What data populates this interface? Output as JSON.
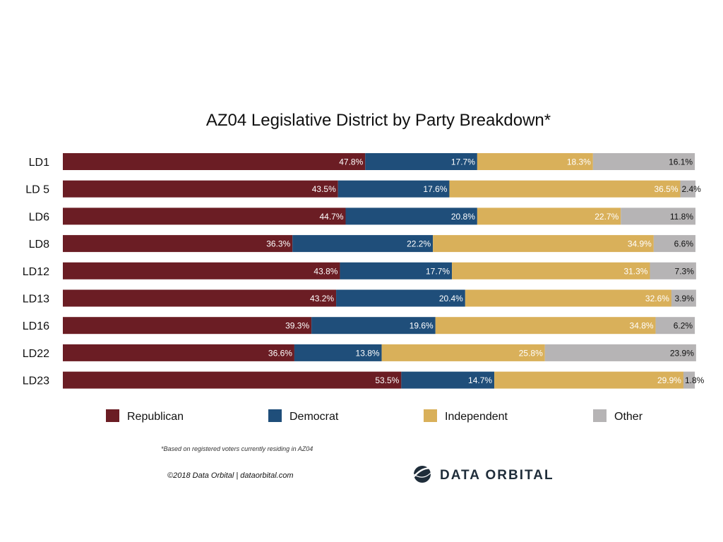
{
  "chart_data": {
    "type": "bar",
    "orientation": "horizontal",
    "stacked": true,
    "normalized": true,
    "title": "AZ04 Legislative District by Party Breakdown*",
    "categories": [
      "LD1",
      "LD 5",
      "LD6",
      "LD8",
      "LD12",
      "LD13",
      "LD16",
      "LD22",
      "LD23"
    ],
    "series": [
      {
        "name": "Republican",
        "color": "#6b1d24",
        "label_color": "#ffffff",
        "values": [
          47.8,
          43.5,
          44.7,
          36.3,
          43.8,
          43.2,
          39.3,
          36.6,
          53.5
        ]
      },
      {
        "name": "Democrat",
        "color": "#1f4e7a",
        "label_color": "#ffffff",
        "values": [
          17.7,
          17.6,
          20.8,
          22.2,
          17.7,
          20.4,
          19.6,
          13.8,
          14.7
        ]
      },
      {
        "name": "Independent",
        "color": "#d9b05a",
        "label_color": "#ffffff",
        "values": [
          18.3,
          36.5,
          22.7,
          34.9,
          31.3,
          32.6,
          34.8,
          25.8,
          29.9
        ]
      },
      {
        "name": "Other",
        "color": "#b6b4b5",
        "label_color": "#111111",
        "values": [
          16.1,
          2.4,
          11.8,
          6.6,
          7.3,
          3.9,
          6.2,
          23.9,
          1.8
        ]
      }
    ],
    "value_suffix": "%",
    "xlim": [
      0,
      100
    ],
    "grid": false,
    "legend_position": "bottom"
  },
  "footnote": "*Based on registered voters currently residing in AZ04",
  "credit": "©2018 Data Orbital | dataorbital.com",
  "brand": {
    "name": "DATA ORBITAL",
    "logo": "orbit-globe-logo",
    "color": "#1f2d3a"
  }
}
